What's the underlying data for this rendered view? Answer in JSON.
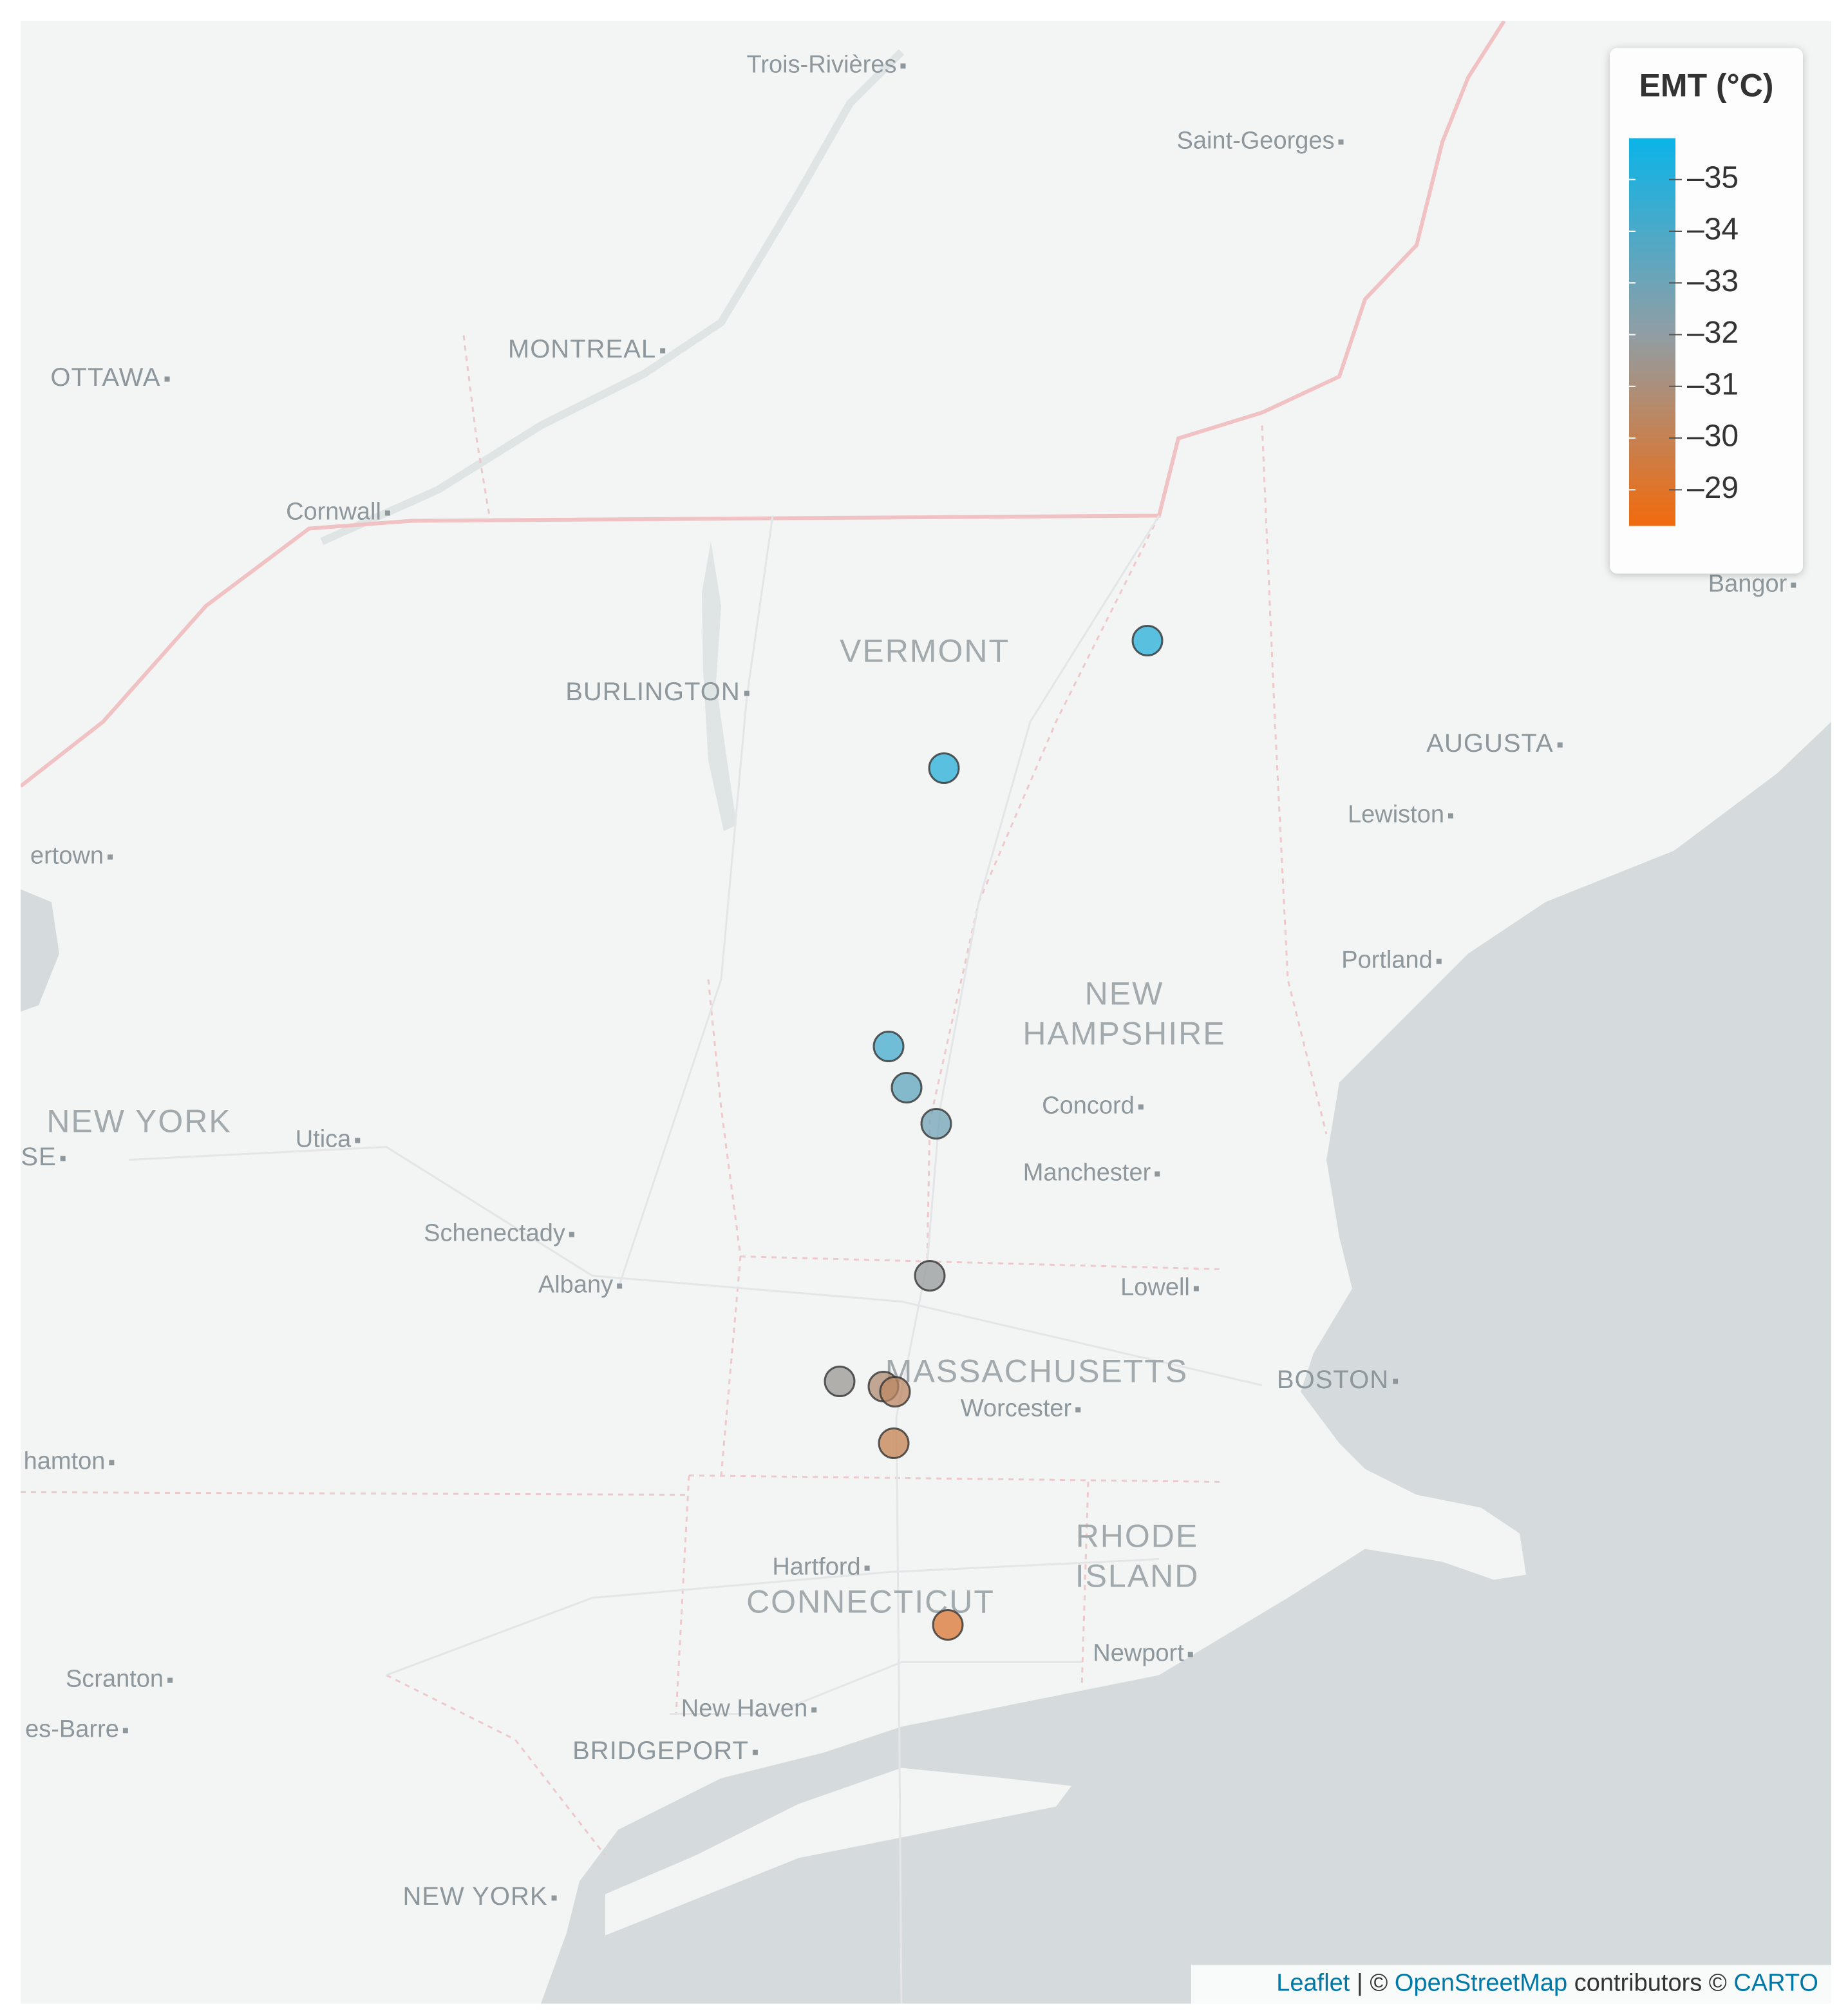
{
  "map": {
    "labels": [
      "Trois-Rivières",
      "Saint-Georges",
      "MONTREAL",
      "OTTAWA",
      "Cornwall",
      "VERMONT",
      "BURLINGTON",
      "AUGUSTA",
      "Lewiston",
      "ertown",
      "Bangor",
      "Portland",
      "NEW",
      "HAMPSHIRE",
      "Concord",
      "NEW YORK",
      "Utica",
      "SE",
      "Manchester",
      "Schenectady",
      "Albany",
      "Lowell",
      "MASSACHUSETTS",
      "BOSTON",
      "Worcester",
      "hamton",
      "RHODE",
      "ISLAND",
      "Hartford",
      "CONNECTICUT",
      "Newport",
      "Scranton",
      "es-Barre",
      "New Haven",
      "BRIDGEPORT",
      "NEW YORK"
    ],
    "points": {
      "values": [
        -35,
        -35,
        -34.2,
        -33.4,
        -32.9,
        -31.8,
        -31.6,
        -30.8,
        -30.4,
        -30,
        -29.2
      ]
    },
    "attribution": [
      "Leaflet",
      " | © ",
      "OpenStreetMap",
      " contributors © ",
      "CARTO"
    ]
  },
  "legend": {
    "title": "EMT (°C)",
    "lim": [
      -35.8,
      -28.3
    ],
    "colors": [
      "#0bb4e8",
      "#8f9ea6",
      "#f26a0d"
    ],
    "ticks": [
      {
        "value": -35,
        "label": "–35"
      },
      {
        "value": -34,
        "label": "–34"
      },
      {
        "value": -33,
        "label": "–33"
      },
      {
        "value": -32,
        "label": "–32"
      },
      {
        "value": -31,
        "label": "–31"
      },
      {
        "value": -30,
        "label": "–30"
      },
      {
        "value": -29,
        "label": "–29"
      }
    ]
  }
}
